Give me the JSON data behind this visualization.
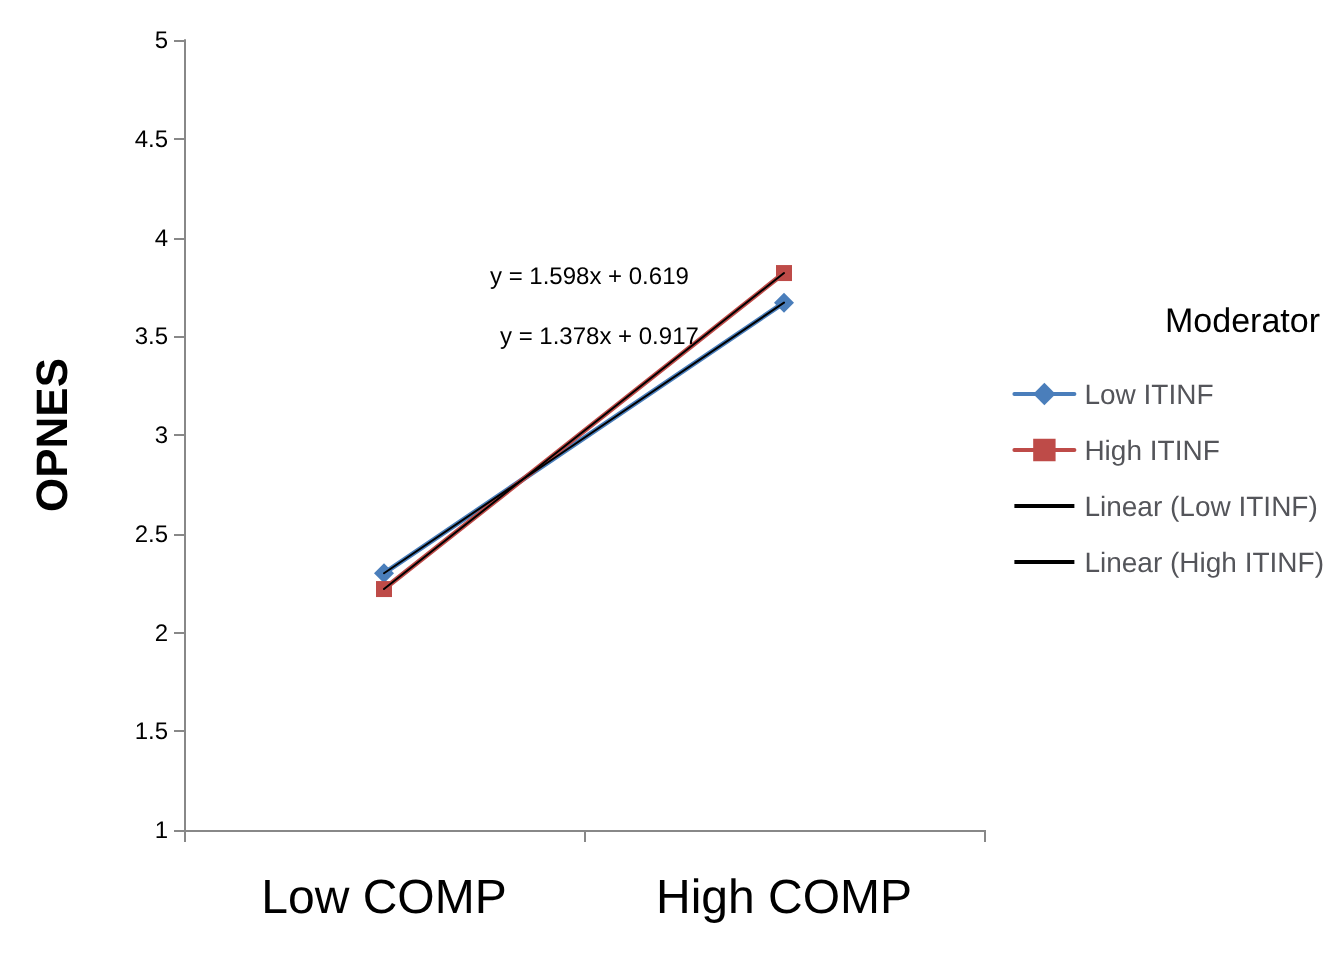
{
  "chart_data": {
    "type": "line",
    "ylabel": "OPNES",
    "legend_title": "Moderator",
    "categories": [
      "Low COMP",
      "High COMP"
    ],
    "series": [
      {
        "name": "Low ITINF",
        "color": "#4a7ebb",
        "values": [
          2.3,
          3.67
        ],
        "marker": "diamond"
      },
      {
        "name": "High ITINF",
        "color": "#be4b48",
        "values": [
          2.22,
          3.82
        ],
        "marker": "square"
      },
      {
        "name": "Linear (Low ITINF)",
        "color": "#000000",
        "x": [
          "Low COMP",
          "High COMP"
        ],
        "values": [
          2.3,
          3.67
        ],
        "marker": "none"
      },
      {
        "name": "Linear (High ITINF)",
        "color": "#000000",
        "x": [
          "Low COMP",
          "High COMP"
        ],
        "values": [
          2.22,
          3.82
        ],
        "marker": "none"
      }
    ],
    "annotations": [
      "y = 1.598x + 0.619",
      "y = 1.378x + 0.917"
    ],
    "ylim": [
      1,
      5
    ],
    "yticks": [
      1,
      1.5,
      2,
      2.5,
      3,
      3.5,
      4,
      4.5,
      5
    ],
    "grid": false,
    "legend": "right",
    "line_style": "solid"
  }
}
